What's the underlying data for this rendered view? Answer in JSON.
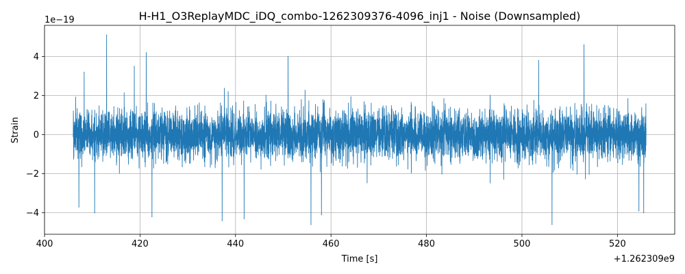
{
  "chart_data": {
    "type": "line",
    "title": "H-H1_O3ReplayMDC_iDQ_combo-1262309376-4096_inj1 - Noise (Downsampled)",
    "xlabel": "Time [s]",
    "ylabel": "Strain",
    "x_offset_label": "+1.262309e9",
    "y_scale_label": "1e−19",
    "x_ticks": [
      400,
      420,
      440,
      460,
      480,
      500,
      520
    ],
    "x_tick_labels": [
      "400",
      "420",
      "440",
      "460",
      "480",
      "500",
      "520"
    ],
    "y_ticks": [
      -4,
      -2,
      0,
      2,
      4
    ],
    "y_tick_labels": [
      "−4",
      "−2",
      "0",
      "2",
      "4"
    ],
    "xlim": [
      400,
      532
    ],
    "ylim": [
      -5.1,
      5.6
    ],
    "grid": true,
    "series": [
      {
        "color": "#1f77b4",
        "x_range": [
          406,
          526
        ],
        "amplitude_typical": 2.5,
        "peaks": [
          {
            "x": 413.0,
            "y": 5.1
          },
          {
            "x": 421.3,
            "y": 4.2
          },
          {
            "x": 451.0,
            "y": 4.0
          },
          {
            "x": 513.0,
            "y": 4.6
          },
          {
            "x": 437.2,
            "y": -4.4
          },
          {
            "x": 455.8,
            "y": -4.6
          },
          {
            "x": 506.3,
            "y": -4.6
          },
          {
            "x": 441.8,
            "y": -4.3
          },
          {
            "x": 458.0,
            "y": -4.1
          },
          {
            "x": 422.5,
            "y": -4.2
          },
          {
            "x": 410.5,
            "y": -4.0
          },
          {
            "x": 525.5,
            "y": -4.0
          },
          {
            "x": 407.2,
            "y": -3.7
          },
          {
            "x": 524.5,
            "y": -3.9
          },
          {
            "x": 503.5,
            "y": 3.8
          },
          {
            "x": 418.8,
            "y": 3.5
          },
          {
            "x": 408.3,
            "y": 3.2
          }
        ]
      }
    ]
  }
}
